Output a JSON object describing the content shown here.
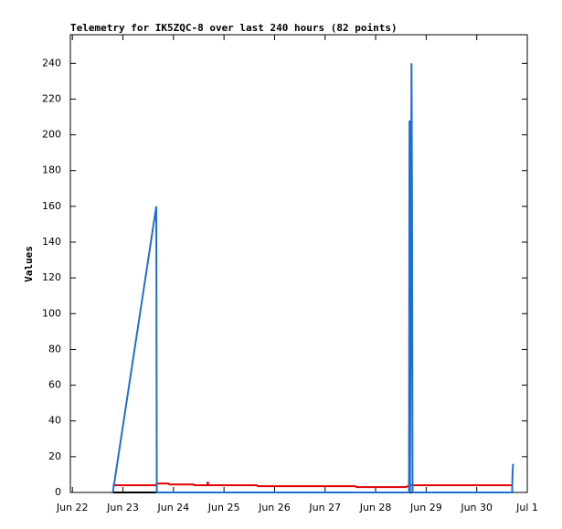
{
  "chart_data": {
    "type": "line",
    "title": "Telemetry for IK5ZQC-8 over last 240 hours (82 points)",
    "y_label": "Values",
    "xlim": [
      -0.04,
      9
    ],
    "xticks": [
      {
        "value": 0,
        "label": "Jun 22"
      },
      {
        "value": 1,
        "label": "Jun 23"
      },
      {
        "value": 2,
        "label": "Jun 24"
      },
      {
        "value": 3,
        "label": "Jun 25"
      },
      {
        "value": 4,
        "label": "Jun 26"
      },
      {
        "value": 5,
        "label": "Jun 27"
      },
      {
        "value": 6,
        "label": "Jun 28"
      },
      {
        "value": 7,
        "label": "Jun 29"
      },
      {
        "value": 8,
        "label": "Jun 30"
      },
      {
        "value": 9,
        "label": "Jul 1"
      }
    ],
    "ylim": [
      0,
      256
    ],
    "yticks": [
      0,
      20,
      40,
      60,
      80,
      100,
      120,
      140,
      160,
      180,
      200,
      220,
      240
    ],
    "series": [
      {
        "color": "#000000",
        "x": [
          0.8,
          8.72
        ],
        "values": [
          0,
          0
        ]
      },
      {
        "color": "#e00000",
        "x": [
          0.8,
          1.66,
          1.67,
          1.9,
          1.92,
          2.4,
          2.42,
          2.67,
          2.68,
          2.69,
          3.65,
          3.67,
          5.6,
          5.62,
          6.6,
          6.67,
          8.72
        ],
        "values": [
          4,
          4,
          5,
          5,
          4.5,
          4.5,
          4,
          4,
          6,
          4,
          4,
          3.5,
          3.5,
          3,
          3,
          4,
          4
        ]
      },
      {
        "color": "#1f6fce",
        "x": [
          0.8,
          1.66,
          1.67,
          6.66,
          6.67,
          6.68,
          6.71,
          6.72,
          6.73,
          8.7,
          8.71,
          8.72
        ],
        "values": [
          0,
          160,
          0,
          0,
          208,
          0,
          240,
          160,
          0,
          0,
          12,
          16
        ]
      }
    ]
  }
}
